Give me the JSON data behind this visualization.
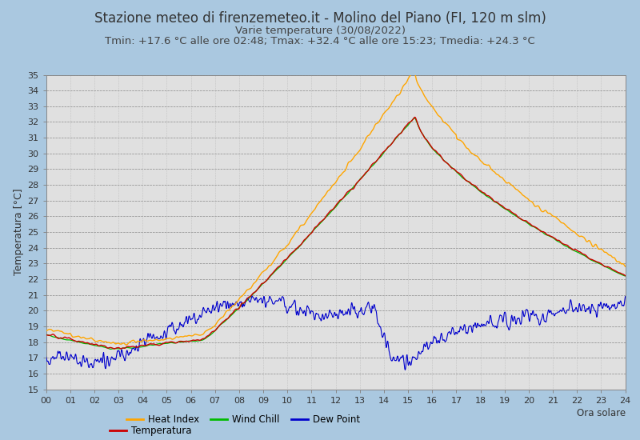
{
  "title1": "Stazione meteo di firenzemeteo.it - Molino del Piano (FI, 120 m slm)",
  "title2": "Varie temperature (30/08/2022)",
  "title3": "Tmin: +17.6 °C alle ore 02:48; Tmax: +32.4 °C alle ore 15:23; Tmedia: +24.3 °C",
  "xlabel": "Ora solare",
  "ylabel": "Temperatura [°C]",
  "ylim": [
    15,
    35
  ],
  "xlim": [
    0,
    24
  ],
  "yticks": [
    15,
    16,
    17,
    18,
    19,
    20,
    21,
    22,
    23,
    24,
    25,
    26,
    27,
    28,
    29,
    30,
    31,
    32,
    33,
    34,
    35
  ],
  "xticks": [
    0,
    1,
    2,
    3,
    4,
    5,
    6,
    7,
    8,
    9,
    10,
    11,
    12,
    13,
    14,
    15,
    16,
    17,
    18,
    19,
    20,
    21,
    22,
    23,
    24
  ],
  "xticklabels": [
    "00",
    "01",
    "02",
    "03",
    "04",
    "05",
    "06",
    "07",
    "08",
    "09",
    "10",
    "11",
    "12",
    "13",
    "14",
    "15",
    "16",
    "17",
    "18",
    "19",
    "20",
    "21",
    "22",
    "23",
    "24"
  ],
  "bg_color": "#aac8e0",
  "plot_bg": "#e0e0e0",
  "color_heat": "#ffa500",
  "color_wind": "#00bb00",
  "color_dew": "#0000cc",
  "color_temp": "#cc0000",
  "title1_fontsize": 12,
  "title2_fontsize": 9.5,
  "title3_fontsize": 9.5,
  "ylabel_fontsize": 9,
  "tick_fontsize": 8
}
